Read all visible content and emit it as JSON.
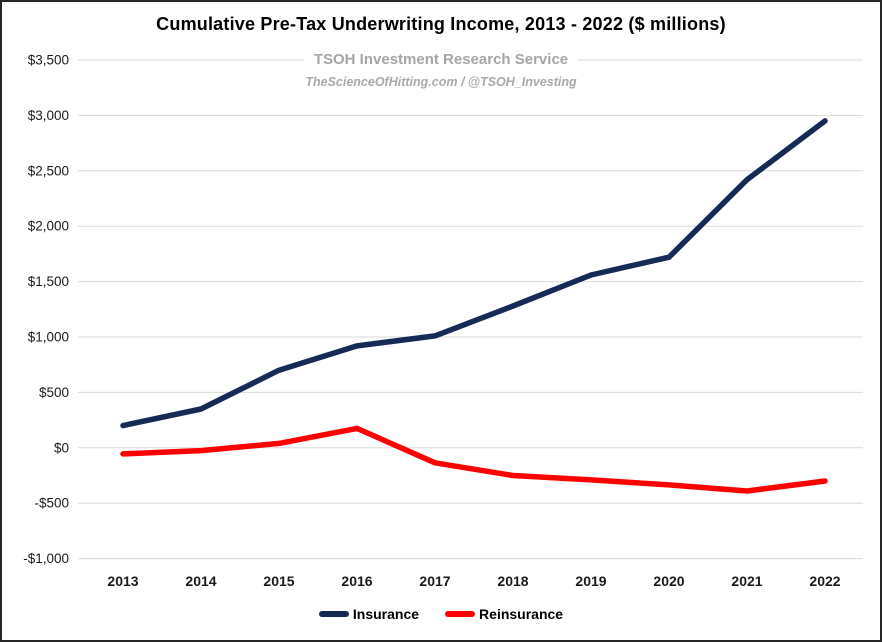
{
  "title": "Cumulative Pre-Tax Underwriting Income, 2013 - 2022 ($ millions)",
  "subtitle": "TSOH Investment Research Service",
  "watermark": "TheScienceOfHitting.com / @TSOH_Investing",
  "colors": {
    "insurance_line": "#152a54",
    "reinsurance_line": "#ff0000",
    "gridline": "#d9d9d9",
    "axis_text": "#1a1a1a",
    "subtitle_gray": "#a6a6a6",
    "frame_border": "#262626"
  },
  "chart_data": {
    "type": "line",
    "title": "Cumulative Pre-Tax Underwriting Income, 2013 - 2022 ($ millions)",
    "categories": [
      "2013",
      "2014",
      "2015",
      "2016",
      "2017",
      "2018",
      "2019",
      "2020",
      "2021",
      "2022"
    ],
    "series": [
      {
        "name": "Insurance",
        "color": "#152a54",
        "values": [
          200,
          350,
          700,
          920,
          1010,
          1280,
          1560,
          1720,
          2420,
          2950
        ]
      },
      {
        "name": "Reinsurance",
        "color": "#ff0000",
        "values": [
          -55,
          -25,
          40,
          175,
          -135,
          -250,
          -290,
          -335,
          -390,
          -300
        ]
      }
    ],
    "xlabel": "",
    "ylabel": "",
    "ylim": [
      -1000,
      3500
    ],
    "y_tick_step": 500,
    "y_tick_labels": [
      "$3,500",
      "$3,000",
      "$2,500",
      "$2,000",
      "$1,500",
      "$1,000",
      "$500",
      "$0",
      "-$500",
      "-$1,000"
    ],
    "grid": "horizontal",
    "legend_position": "bottom",
    "legend_labels": [
      "Insurance",
      "Reinsurance"
    ]
  }
}
